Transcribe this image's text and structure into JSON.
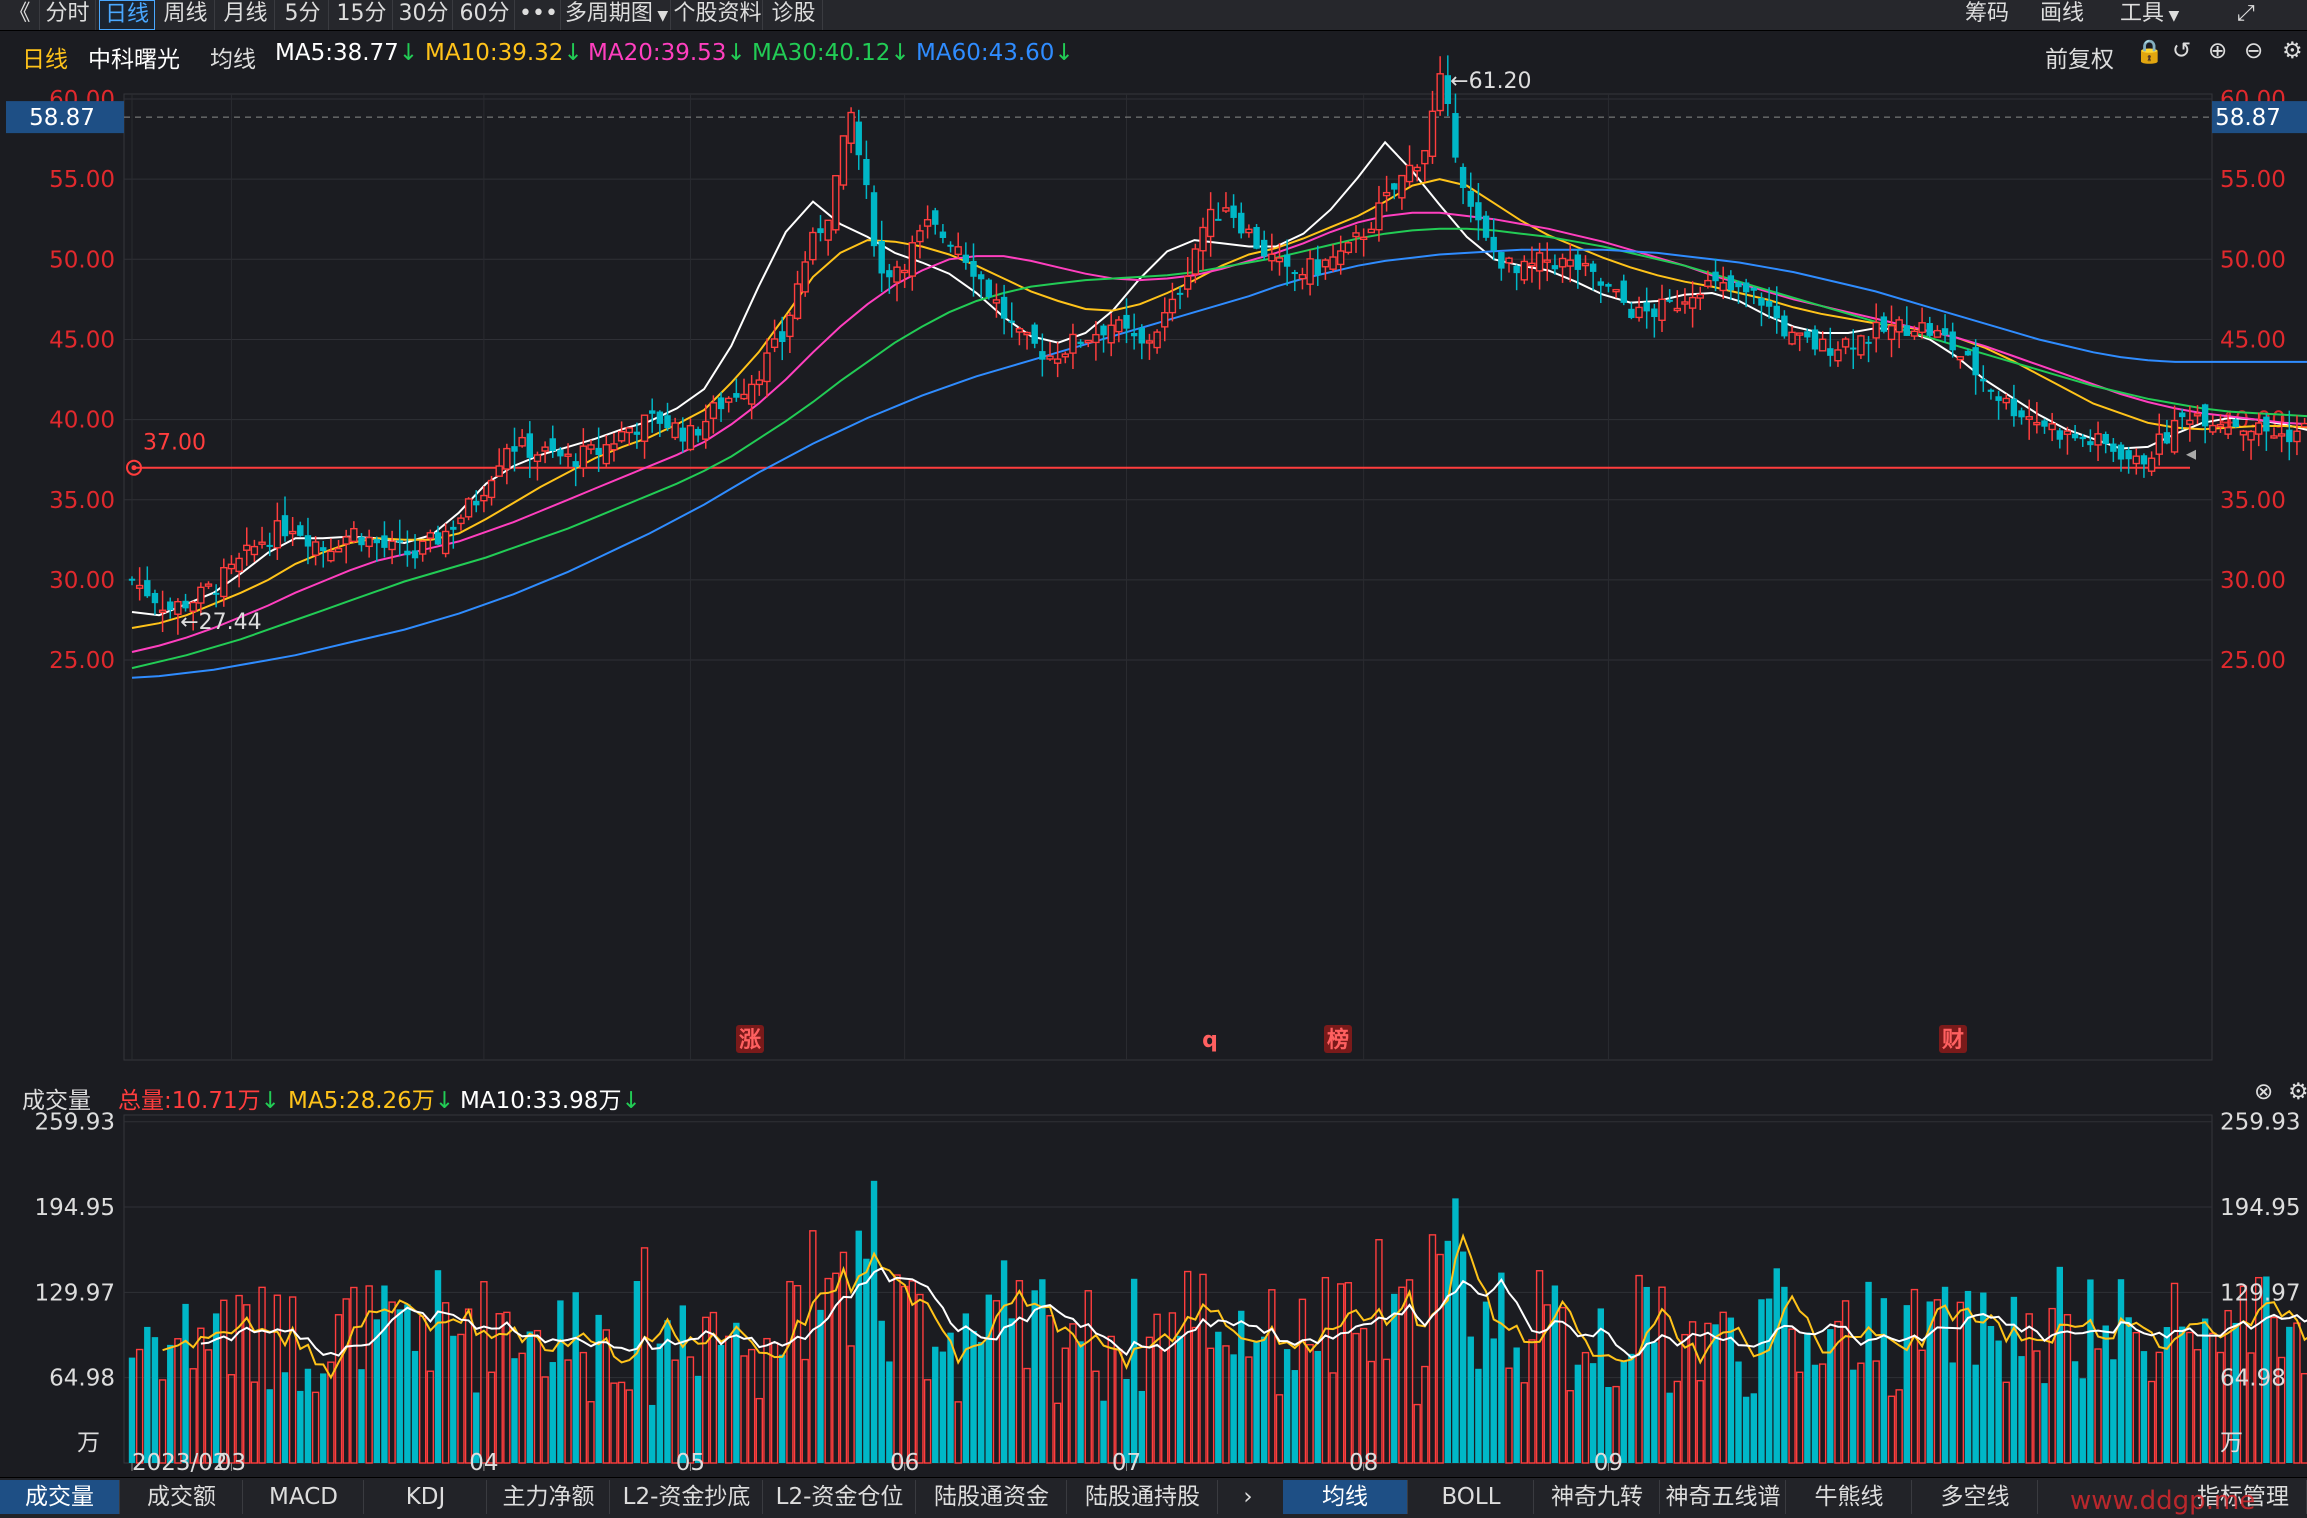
{
  "toolbar": {
    "back": "《",
    "periods": [
      "分时",
      "日线",
      "周线",
      "月线",
      "5分",
      "15分",
      "30分",
      "60分"
    ],
    "active_period": "日线",
    "more": "•••",
    "multi_period": "多周期图",
    "stock_info": "个股资料",
    "diagnose": "诊股",
    "right": [
      "筹码",
      "画线",
      "工具"
    ]
  },
  "main_info": {
    "period": "日线",
    "name": "中科曙光",
    "ma_label": "均线",
    "ma5": "MA5:38.77",
    "ma10": "MA10:39.32",
    "ma20": "MA20:39.53",
    "ma30": "MA30:40.12",
    "ma60": "MA60:43.60",
    "adjust": "前复权"
  },
  "colors": {
    "up": "#ff3d3d",
    "down": "#00b7c7",
    "ma5": "#ffffff",
    "ma10": "#ffc31a",
    "ma20": "#ff3fbf",
    "ma30": "#22cc55",
    "ma60": "#2f8cff",
    "axis_text": "#e0292d",
    "bg": "#1b1c21"
  },
  "price_axis": {
    "ticks": [
      "60.00",
      "55.00",
      "50.00",
      "45.00",
      "40.00",
      "35.00",
      "30.00",
      "25.00"
    ],
    "tick_values": [
      60,
      55,
      50,
      45,
      40,
      35,
      30,
      25
    ],
    "crosshair_price": "58.87",
    "crosshair_value": 58.87,
    "support_label": "37.00",
    "support_value": 37.0,
    "high_label": "61.20",
    "high_value": 61.2,
    "low_label": "27.44",
    "low_value": 27.44
  },
  "event_markers": [
    "涨",
    "q",
    "榜",
    "财"
  ],
  "volume_info": {
    "label": "成交量",
    "total": "总量:10.71万",
    "ma5": "MA5:28.26万",
    "ma10": "MA10:33.98万"
  },
  "volume_axis": {
    "ticks": [
      "259.93",
      "194.95",
      "129.97",
      "64.98"
    ],
    "tick_values": [
      259.93,
      194.95,
      129.97,
      64.98
    ],
    "unit": "万"
  },
  "date_labels": [
    "2023/02",
    "03",
    "04",
    "05",
    "06",
    "07",
    "08",
    "09"
  ],
  "bottom_tabs": [
    "成交量",
    "成交额",
    "MACD",
    "KDJ",
    "主力净额",
    "L2-资金抄底",
    "L2-资金仓位",
    "陆股通资金",
    "陆股通持股"
  ],
  "bottom_tabs_right": [
    "均线",
    "BOLL",
    "神奇九转",
    "神奇五线谱",
    "牛熊线",
    "多空线"
  ],
  "indicator_manage": "指标管理",
  "watermark": "www.ddgp.me",
  "chart_data": {
    "type": "candlestick",
    "symbol": "中科曙光",
    "x_range": [
      "2023/02",
      "09"
    ],
    "ylim": [
      23.5,
      62.5
    ],
    "volume_ylim": [
      0,
      262
    ],
    "path_points": [
      [
        0,
        30
      ],
      [
        5,
        28.2
      ],
      [
        9,
        29
      ],
      [
        13,
        30.5
      ],
      [
        17,
        32.5
      ],
      [
        21,
        33.5
      ],
      [
        25,
        32
      ],
      [
        29,
        33
      ],
      [
        33,
        32
      ],
      [
        37,
        31.5
      ],
      [
        41,
        33
      ],
      [
        45,
        35
      ],
      [
        49,
        38.5
      ],
      [
        53,
        38
      ],
      [
        57,
        37.5
      ],
      [
        61,
        38
      ],
      [
        65,
        39.5
      ],
      [
        69,
        40
      ],
      [
        73,
        39
      ],
      [
        77,
        41
      ],
      [
        81,
        42.5
      ],
      [
        85,
        45
      ],
      [
        88,
        50
      ],
      [
        91,
        53
      ],
      [
        94,
        59
      ],
      [
        96,
        54
      ],
      [
        98,
        49
      ],
      [
        101,
        50
      ],
      [
        104,
        52
      ],
      [
        108,
        51
      ],
      [
        112,
        48
      ],
      [
        116,
        45
      ],
      [
        120,
        44
      ],
      [
        124,
        45
      ],
      [
        128,
        46
      ],
      [
        132,
        44.5
      ],
      [
        136,
        47
      ],
      [
        140,
        52
      ],
      [
        143,
        53.5
      ],
      [
        147,
        51
      ],
      [
        151,
        49
      ],
      [
        155,
        49.5
      ],
      [
        159,
        50.5
      ],
      [
        163,
        53
      ],
      [
        166,
        55
      ],
      [
        169,
        57
      ],
      [
        171,
        61
      ],
      [
        173,
        57
      ],
      [
        175,
        53
      ],
      [
        177,
        51
      ],
      [
        181,
        49
      ],
      [
        185,
        50
      ],
      [
        189,
        49.5
      ],
      [
        193,
        48
      ],
      [
        197,
        46.5
      ],
      [
        201,
        47
      ],
      [
        205,
        48.5
      ],
      [
        209,
        48
      ],
      [
        213,
        47.5
      ],
      [
        217,
        45
      ],
      [
        221,
        44.5
      ],
      [
        225,
        45
      ],
      [
        229,
        45.5
      ],
      [
        233,
        46
      ],
      [
        237,
        45
      ],
      [
        241,
        43
      ],
      [
        245,
        41
      ],
      [
        249,
        40
      ],
      [
        253,
        39
      ],
      [
        257,
        38.5
      ],
      [
        260,
        38
      ],
      [
        262,
        37.2
      ],
      [
        265,
        38.5
      ],
      [
        269,
        40.5
      ],
      [
        273,
        40
      ],
      [
        277,
        39.5
      ],
      [
        281,
        39
      ],
      [
        285,
        39.5
      ],
      [
        289,
        38.5
      ],
      [
        292,
        37.8
      ]
    ],
    "ma_series": [
      {
        "name": "MA5",
        "values": [
          28,
          27.8,
          28.5,
          29.2,
          30.4,
          31.7,
          32.6,
          32.6,
          32.7,
          32.6,
          32.3,
          32.8,
          34.2,
          36,
          37.1,
          37.8,
          38.3,
          38.8,
          39.4,
          39.9,
          40.7,
          41.9,
          44.6,
          48.3,
          51.7,
          53.6,
          52.2,
          51.4,
          50.4,
          49.8,
          49.1,
          47.9,
          46.4,
          45.2,
          44.8,
          45.4,
          46.8,
          48.8,
          50.5,
          51.2,
          51,
          50.8,
          50.8,
          51.6,
          53.1,
          55.1,
          57.3,
          55.5,
          53.4,
          51.4,
          50,
          49.6,
          49.3,
          48.6,
          47.8,
          47.3,
          47.4,
          47.8,
          47.9,
          47.4,
          46.5,
          45.8,
          45.4,
          45.4,
          45.7,
          45.6,
          45,
          43.9,
          42.5,
          41.4,
          40.3,
          39.4,
          38.8,
          38.2,
          38.3,
          39.1,
          39.8,
          40.1,
          40,
          39.7,
          39.3,
          39.1,
          38.77
        ]
      },
      {
        "name": "MA10",
        "values": [
          27,
          27.3,
          27.8,
          28.5,
          29.2,
          30,
          31,
          31.7,
          32.3,
          32.6,
          32.5,
          32.5,
          32.9,
          33.8,
          34.8,
          35.8,
          36.7,
          37.6,
          38.3,
          38.9,
          39.7,
          40.6,
          42.3,
          44.2,
          46.5,
          48.9,
          50.4,
          51.2,
          51.1,
          50.8,
          50.3,
          49.6,
          48.8,
          48,
          47.4,
          46.9,
          46.8,
          47.2,
          47.9,
          48.7,
          49.6,
          50.3,
          50.7,
          51.3,
          52,
          52.7,
          53.6,
          54.6,
          55,
          54.6,
          53.5,
          52.4,
          51.5,
          50.8,
          50.1,
          49.5,
          49,
          48.6,
          48.3,
          47.9,
          47.5,
          47,
          46.6,
          46.3,
          46,
          45.8,
          45.5,
          45.1,
          44.5,
          43.7,
          42.8,
          41.9,
          41,
          40.4,
          39.8,
          39.5,
          39.4,
          39.5,
          39.6,
          39.6,
          39.5,
          39.4,
          39.32
        ]
      },
      {
        "name": "MA20",
        "values": [
          25.5,
          25.9,
          26.4,
          27,
          27.7,
          28.4,
          29.2,
          29.9,
          30.6,
          31.2,
          31.6,
          32,
          32.4,
          33,
          33.6,
          34.3,
          35,
          35.7,
          36.4,
          37.1,
          37.8,
          38.6,
          39.7,
          41,
          42.5,
          44.2,
          45.8,
          47.2,
          48.4,
          49.3,
          50,
          50.2,
          50.2,
          49.9,
          49.5,
          49.1,
          48.8,
          48.7,
          48.8,
          49,
          49.4,
          49.9,
          50.4,
          51,
          51.7,
          52.3,
          52.7,
          52.9,
          52.9,
          52.7,
          52.5,
          52.2,
          51.9,
          51.5,
          51.1,
          50.6,
          50.1,
          49.6,
          49,
          48.5,
          48,
          47.5,
          47.1,
          46.7,
          46.3,
          45.9,
          45.5,
          45.1,
          44.6,
          44,
          43.4,
          42.8,
          42.2,
          41.6,
          41.1,
          40.7,
          40.4,
          40.2,
          40,
          39.8,
          39.7,
          39.6,
          39.53
        ]
      },
      {
        "name": "MA30",
        "values": [
          24.5,
          24.9,
          25.3,
          25.8,
          26.3,
          26.9,
          27.5,
          28.1,
          28.7,
          29.3,
          29.9,
          30.4,
          30.9,
          31.4,
          32,
          32.6,
          33.2,
          33.9,
          34.6,
          35.3,
          36,
          36.8,
          37.7,
          38.8,
          39.9,
          41.1,
          42.4,
          43.6,
          44.8,
          45.8,
          46.7,
          47.4,
          47.9,
          48.3,
          48.5,
          48.7,
          48.8,
          48.9,
          49,
          49.2,
          49.5,
          49.8,
          50.1,
          50.5,
          50.9,
          51.3,
          51.6,
          51.8,
          51.9,
          51.9,
          51.8,
          51.6,
          51.4,
          51.1,
          50.8,
          50.4,
          50,
          49.6,
          49.1,
          48.6,
          48.1,
          47.6,
          47.1,
          46.6,
          46.1,
          45.6,
          45.1,
          44.6,
          44.1,
          43.6,
          43.1,
          42.6,
          42.1,
          41.7,
          41.3,
          41,
          40.7,
          40.5,
          40.4,
          40.3,
          40.2,
          40.15,
          40.12
        ]
      },
      {
        "name": "MA60",
        "values": [
          23.9,
          24,
          24.2,
          24.4,
          24.7,
          25,
          25.3,
          25.7,
          26.1,
          26.5,
          26.9,
          27.4,
          27.9,
          28.5,
          29.1,
          29.8,
          30.5,
          31.3,
          32.1,
          32.9,
          33.8,
          34.7,
          35.7,
          36.7,
          37.6,
          38.5,
          39.3,
          40.1,
          40.8,
          41.5,
          42.1,
          42.7,
          43.2,
          43.7,
          44.2,
          44.7,
          45.2,
          45.7,
          46.2,
          46.7,
          47.2,
          47.7,
          48.3,
          48.8,
          49.2,
          49.6,
          49.9,
          50.1,
          50.3,
          50.4,
          50.5,
          50.6,
          50.6,
          50.6,
          50.6,
          50.5,
          50.4,
          50.2,
          50,
          49.8,
          49.5,
          49.2,
          48.8,
          48.4,
          48,
          47.5,
          47,
          46.5,
          46,
          45.5,
          45,
          44.6,
          44.2,
          43.9,
          43.7,
          43.6,
          43.6,
          43.6,
          43.6,
          43.6,
          43.6,
          43.6,
          43.6
        ]
      }
    ]
  }
}
